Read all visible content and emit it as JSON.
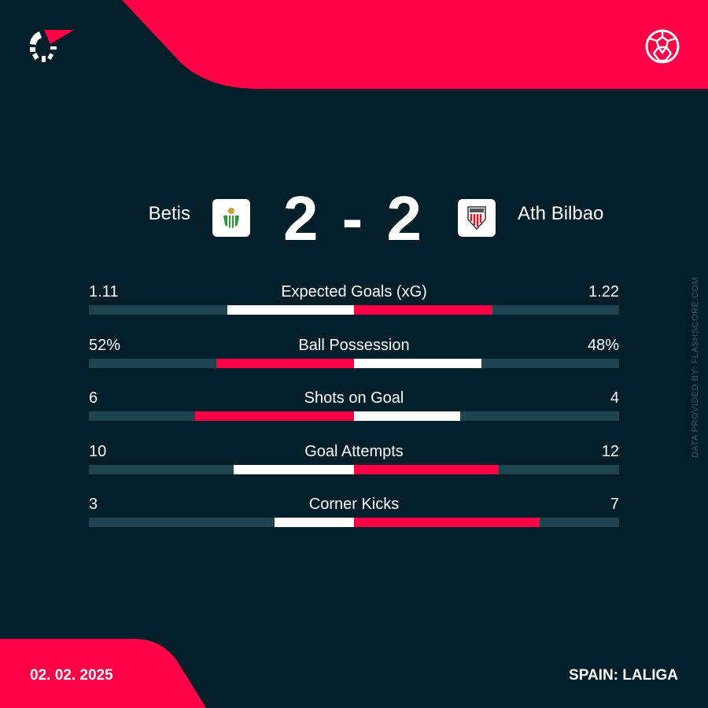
{
  "colors": {
    "background": "#011e29",
    "accent": "#ff0046",
    "track": "#1e4450",
    "neutral": "#ffffff"
  },
  "icons": {
    "logo": "flashscore-logo",
    "sport": "soccer-ball-icon"
  },
  "match": {
    "home": "Betis",
    "away": "Ath Bilbao",
    "score": "2 - 2",
    "home_goals": 2,
    "away_goals": 2
  },
  "stats": [
    {
      "name": "Expected Goals (xG)",
      "home": "1.11",
      "away": "1.22",
      "home_value": 1.11,
      "away_value": 1.22
    },
    {
      "name": "Ball Possession",
      "home": "52%",
      "away": "48%",
      "home_value": 52,
      "away_value": 48
    },
    {
      "name": "Shots on Goal",
      "home": "6",
      "away": "4",
      "home_value": 6,
      "away_value": 4
    },
    {
      "name": "Goal Attempts",
      "home": "10",
      "away": "12",
      "home_value": 10,
      "away_value": 12
    },
    {
      "name": "Corner Kicks",
      "home": "3",
      "away": "7",
      "home_value": 3,
      "away_value": 7
    }
  ],
  "credit": "DATA PROVIDED BY: FLASHSCORE.COM",
  "footer": {
    "date": "02. 02. 2025",
    "league": "SPAIN: LALIGA"
  }
}
